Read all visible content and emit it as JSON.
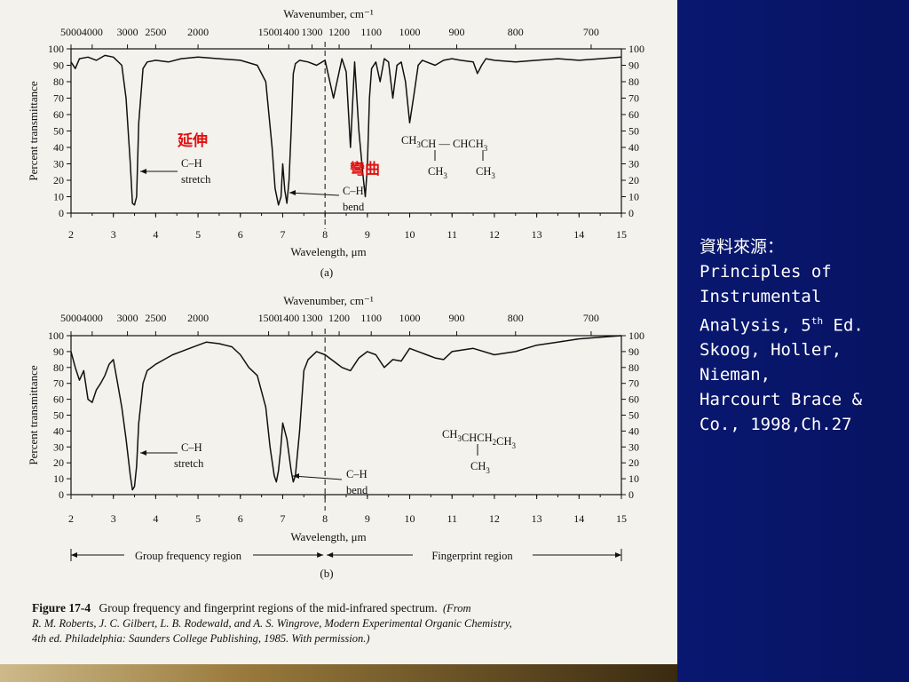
{
  "slide": {
    "source_lines": [
      "資料來源：",
      "Principles of",
      "Instrumental",
      "Analysis, 5",
      "th",
      " Ed.",
      "Skoog, Holler,",
      "Nieman,",
      "Harcourt Brace &",
      "Co., 1998,Ch.27"
    ]
  },
  "caption": {
    "figure_number": "Figure 17-4",
    "text": "Group frequency and fingerprint regions of the mid-infrared spectrum.",
    "credit_line1": "(From",
    "credit_line2": "R. M. Roberts, J. C. Gilbert, L. B. Rodewald, and A. S. Wingrove, Modern Experimental Organic Chemistry,",
    "credit_line3": "4th ed. Philadelphia: Saunders College Publishing, 1985. With permission.)"
  },
  "chart_data": [
    {
      "type": "line",
      "panel": "(a)",
      "title": "Wavenumber, cm⁻¹",
      "xlabel": "Wavelength, μm",
      "ylabel": "Percent transmittance",
      "xlim": [
        2,
        15
      ],
      "ylim": [
        0,
        100
      ],
      "x_ticks": [
        2,
        3,
        4,
        5,
        6,
        7,
        8,
        9,
        10,
        11,
        12,
        13,
        14,
        15
      ],
      "y_ticks": [
        0,
        10,
        20,
        30,
        40,
        50,
        60,
        70,
        80,
        90,
        100
      ],
      "top_axis": {
        "label": "Wavenumber, cm⁻¹",
        "ticks": [
          "5000",
          "4000",
          "3000",
          "2500",
          "2000",
          "1500",
          "1400",
          "1300",
          "1200",
          "1100",
          "1000",
          "900",
          "800",
          "700"
        ],
        "tick_wavenumbers": [
          5000,
          4000,
          3000,
          2500,
          2000,
          1500,
          1400,
          1300,
          1200,
          1100,
          1000,
          900,
          800,
          700
        ]
      },
      "divider_x": 8,
      "annotations": {
        "ch_stretch": [
          "C–H",
          "stretch"
        ],
        "ch_bend": [
          "C–H",
          "bend"
        ],
        "cn_stretch": "延伸",
        "cn_bend": "彎曲"
      },
      "structure": {
        "line1": "CH₃CH — CHCH₃",
        "line2_left": "CH₃",
        "line2_right": "CH₃"
      },
      "series": [
        {
          "x": [
            2.0,
            2.1,
            2.2,
            2.4,
            2.6,
            2.8,
            3.0,
            3.2,
            3.3,
            3.4,
            3.45,
            3.5,
            3.55,
            3.6,
            3.7,
            3.8,
            4.0,
            4.3,
            4.6,
            5.0,
            5.5,
            6.0,
            6.4,
            6.6,
            6.75,
            6.82,
            6.9,
            6.96,
            7.0,
            7.05,
            7.1,
            7.15,
            7.2,
            7.25,
            7.3,
            7.4,
            7.6,
            7.8,
            8.0,
            8.2,
            8.4,
            8.5,
            8.6,
            8.7,
            8.8,
            8.9,
            8.95,
            9.0,
            9.05,
            9.1,
            9.2,
            9.3,
            9.4,
            9.5,
            9.6,
            9.7,
            9.8,
            9.9,
            10.0,
            10.1,
            10.2,
            10.3,
            10.4,
            10.6,
            10.8,
            11.0,
            11.2,
            11.5,
            11.6,
            11.7,
            11.8,
            12.0,
            12.5,
            13.0,
            13.5,
            14.0,
            14.5,
            15.0
          ],
          "y": [
            92,
            88,
            94,
            95,
            93,
            96,
            95,
            90,
            70,
            30,
            6,
            5,
            10,
            55,
            88,
            92,
            93,
            92,
            94,
            95,
            94,
            93,
            90,
            80,
            40,
            15,
            5,
            10,
            30,
            14,
            6,
            20,
            50,
            85,
            91,
            93,
            92,
            90,
            93,
            70,
            94,
            86,
            40,
            92,
            50,
            22,
            10,
            28,
            70,
            88,
            92,
            80,
            94,
            92,
            70,
            90,
            92,
            80,
            55,
            72,
            90,
            93,
            92,
            90,
            93,
            94,
            93,
            92,
            85,
            90,
            94,
            93,
            92,
            93,
            94,
            93,
            94,
            95
          ]
        }
      ]
    },
    {
      "type": "line",
      "panel": "(b)",
      "title": "Wavenumber, cm⁻¹",
      "xlabel": "Wavelength, μm",
      "ylabel": "Percent transmittance",
      "xlim": [
        2,
        15
      ],
      "ylim": [
        0,
        100
      ],
      "x_ticks": [
        2,
        3,
        4,
        5,
        6,
        7,
        8,
        9,
        10,
        11,
        12,
        13,
        14,
        15
      ],
      "y_ticks": [
        0,
        10,
        20,
        30,
        40,
        50,
        60,
        70,
        80,
        90,
        100
      ],
      "top_axis": {
        "label": "Wavenumber, cm⁻¹",
        "ticks": [
          "5000",
          "4000",
          "3000",
          "2500",
          "2000",
          "1500",
          "1400",
          "1300",
          "1200",
          "1100",
          "1000",
          "900",
          "800",
          "700"
        ],
        "tick_wavenumbers": [
          5000,
          4000,
          3000,
          2500,
          2000,
          1500,
          1400,
          1300,
          1200,
          1100,
          1000,
          900,
          800,
          700
        ]
      },
      "divider_x": 8,
      "annotations": {
        "ch_stretch": [
          "C–H",
          "stretch"
        ],
        "ch_bend": [
          "C–H",
          "bend"
        ]
      },
      "regions": {
        "group_frequency": "Group frequency region",
        "fingerprint": "Fingerprint region"
      },
      "structure": {
        "line1": "CH₃CHCH₂CH₃",
        "line2": "CH₃"
      },
      "series": [
        {
          "x": [
            2.0,
            2.1,
            2.2,
            2.3,
            2.4,
            2.5,
            2.6,
            2.7,
            2.8,
            2.9,
            3.0,
            3.1,
            3.2,
            3.3,
            3.4,
            3.45,
            3.5,
            3.55,
            3.6,
            3.7,
            3.8,
            4.0,
            4.2,
            4.4,
            4.6,
            4.8,
            5.0,
            5.2,
            5.5,
            5.8,
            6.0,
            6.2,
            6.4,
            6.6,
            6.7,
            6.8,
            6.85,
            6.9,
            6.95,
            7.0,
            7.1,
            7.2,
            7.25,
            7.3,
            7.4,
            7.5,
            7.6,
            7.8,
            8.0,
            8.2,
            8.4,
            8.6,
            8.8,
            9.0,
            9.2,
            9.4,
            9.6,
            9.8,
            10.0,
            10.2,
            10.4,
            10.6,
            10.8,
            11.0,
            11.5,
            12.0,
            12.5,
            13.0,
            13.5,
            14.0,
            14.5,
            15.0
          ],
          "y": [
            90,
            80,
            72,
            78,
            60,
            58,
            66,
            70,
            75,
            82,
            85,
            70,
            55,
            35,
            12,
            3,
            5,
            18,
            45,
            70,
            78,
            82,
            85,
            88,
            90,
            92,
            94,
            96,
            95,
            93,
            88,
            80,
            75,
            55,
            30,
            12,
            8,
            15,
            28,
            45,
            35,
            15,
            8,
            12,
            40,
            78,
            85,
            90,
            88,
            84,
            80,
            78,
            86,
            90,
            88,
            80,
            85,
            84,
            92,
            90,
            88,
            86,
            85,
            90,
            92,
            88,
            90,
            94,
            96,
            98,
            99,
            100
          ]
        }
      ]
    }
  ]
}
